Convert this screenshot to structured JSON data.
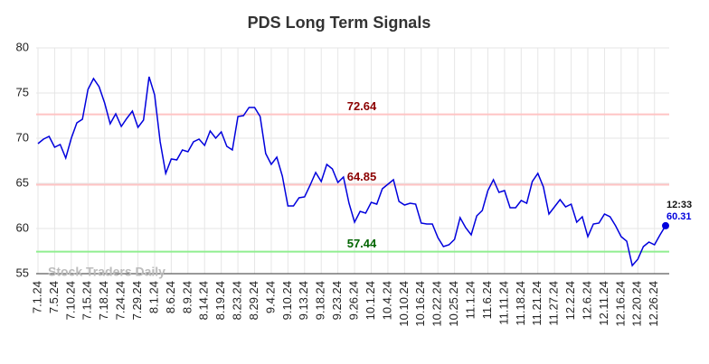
{
  "chart_data": {
    "type": "line",
    "title": "PDS Long Term Signals",
    "categories": [
      "7.1.24",
      null,
      null,
      "7.5.24",
      null,
      null,
      "7.10.24",
      null,
      null,
      "7.15.24",
      null,
      null,
      "7.18.24",
      null,
      null,
      "7.24.24",
      null,
      null,
      "7.29.24",
      null,
      null,
      "8.1.24",
      null,
      null,
      "8.6.24",
      null,
      null,
      "8.9.24",
      null,
      null,
      "8.14.24",
      null,
      null,
      "8.19.24",
      null,
      null,
      "8.23.24",
      null,
      null,
      "8.29.24",
      null,
      null,
      "9.4.24",
      null,
      null,
      "9.10.24",
      null,
      null,
      "9.13.24",
      null,
      null,
      "9.18.24",
      null,
      null,
      "9.23.24",
      null,
      null,
      "9.26.24",
      null,
      null,
      "10.1.24",
      null,
      null,
      "10.4.24",
      null,
      null,
      "10.10.24",
      null,
      null,
      "10.16.24",
      null,
      null,
      "10.22.24",
      null,
      null,
      "10.25.24",
      null,
      null,
      "11.1.24",
      null,
      null,
      "11.6.24",
      null,
      null,
      "11.11.24",
      null,
      null,
      "11.18.24",
      null,
      null,
      "11.21.24",
      null,
      null,
      "11.27.24",
      null,
      null,
      "12.2.24",
      null,
      null,
      "12.6.24",
      null,
      null,
      "12.11.24",
      null,
      null,
      "12.16.24",
      null,
      null,
      "12.20.24",
      null,
      null,
      "12.26.24",
      null,
      null
    ],
    "series": [
      {
        "color": "#0000dd",
        "values": [
          69.4,
          69.9,
          70.2,
          69.0,
          69.3,
          67.8,
          70.0,
          71.7,
          72.1,
          75.4,
          76.6,
          75.7,
          73.9,
          71.6,
          72.7,
          71.3,
          72.2,
          73.0,
          71.2,
          72.0,
          76.8,
          74.8,
          69.6,
          66.1,
          67.7,
          67.6,
          68.7,
          68.5,
          69.6,
          69.9,
          69.2,
          70.8,
          70.0,
          70.7,
          69.1,
          68.7,
          72.4,
          72.5,
          73.4,
          73.4,
          72.4,
          68.3,
          67.1,
          67.9,
          65.8,
          62.5,
          62.5,
          63.4,
          63.5,
          64.8,
          66.2,
          65.2,
          67.1,
          66.6,
          65.1,
          65.7,
          62.8,
          60.7,
          61.9,
          61.7,
          62.9,
          62.7,
          64.4,
          64.9,
          65.4,
          63.0,
          62.6,
          62.8,
          62.7,
          60.6,
          60.5,
          60.5,
          59.0,
          58.0,
          58.2,
          58.8,
          61.2,
          60.1,
          59.3,
          61.4,
          62.0,
          64.2,
          65.4,
          64.0,
          64.2,
          62.3,
          62.3,
          63.1,
          62.8,
          65.2,
          66.1,
          64.6,
          61.6,
          62.4,
          63.2,
          62.4,
          62.7,
          60.7,
          61.3,
          59.1,
          60.5,
          60.6,
          61.6,
          61.3,
          60.3,
          59.1,
          58.6,
          55.9,
          56.6,
          58.0,
          58.5,
          58.2,
          59.3,
          60.31
        ]
      }
    ],
    "hlines": [
      {
        "value": 72.64,
        "color": "#ffc4c4",
        "label_color": "#8b0000"
      },
      {
        "value": 64.85,
        "color": "#ffc4c4",
        "label_color": "#8b0000"
      },
      {
        "value": 57.44,
        "color": "#90ee90",
        "label_color": "#006400"
      }
    ],
    "last_time": "12:33",
    "watermark": "Stock Traders Daily",
    "ylim": [
      55,
      80
    ],
    "yticks": [
      55,
      60,
      65,
      70,
      75,
      80
    ],
    "grid": true
  }
}
